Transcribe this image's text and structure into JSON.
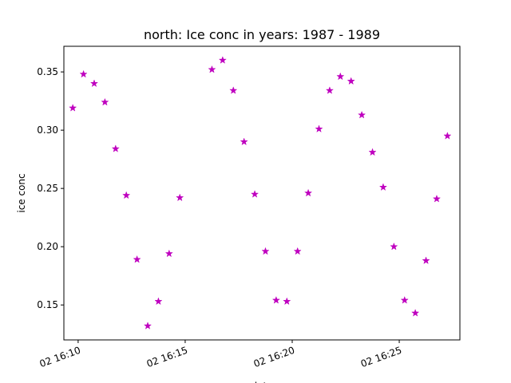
{
  "chart_data": {
    "type": "scatter",
    "title": "north: Ice conc in years: 1987 - 1989",
    "ylabel": "ice conc",
    "xlabel": "date",
    "marker": "star",
    "marker_color": "#bf00bf",
    "ylim": [
      0.12,
      0.372
    ],
    "xlim": [
      "02 16:09:20",
      "02 16:27:50"
    ],
    "y_ticks": [
      {
        "value": 0.15,
        "label": "0.15"
      },
      {
        "value": 0.2,
        "label": "0.20"
      },
      {
        "value": 0.25,
        "label": "0.25"
      },
      {
        "value": 0.3,
        "label": "0.30"
      },
      {
        "value": 0.35,
        "label": "0.35"
      }
    ],
    "x_ticks": [
      {
        "value": "02 16:10:00",
        "label": "02 16:10"
      },
      {
        "value": "02 16:15:00",
        "label": "02 16:15"
      },
      {
        "value": "02 16:20:00",
        "label": "02 16:20"
      },
      {
        "value": "02 16:25:00",
        "label": "02 16:25"
      }
    ],
    "points": [
      {
        "x": "02 16:09:45",
        "y": 0.319
      },
      {
        "x": "02 16:10:15",
        "y": 0.348
      },
      {
        "x": "02 16:10:45",
        "y": 0.34
      },
      {
        "x": "02 16:11:15",
        "y": 0.324
      },
      {
        "x": "02 16:11:45",
        "y": 0.284
      },
      {
        "x": "02 16:12:15",
        "y": 0.244
      },
      {
        "x": "02 16:12:45",
        "y": 0.189
      },
      {
        "x": "02 16:13:15",
        "y": 0.132
      },
      {
        "x": "02 16:13:45",
        "y": 0.153
      },
      {
        "x": "02 16:14:15",
        "y": 0.194
      },
      {
        "x": "02 16:14:45",
        "y": 0.242
      },
      {
        "x": "02 16:16:15",
        "y": 0.352
      },
      {
        "x": "02 16:16:45",
        "y": 0.36
      },
      {
        "x": "02 16:17:15",
        "y": 0.334
      },
      {
        "x": "02 16:17:45",
        "y": 0.29
      },
      {
        "x": "02 16:18:15",
        "y": 0.245
      },
      {
        "x": "02 16:18:45",
        "y": 0.196
      },
      {
        "x": "02 16:19:15",
        "y": 0.154
      },
      {
        "x": "02 16:19:45",
        "y": 0.153
      },
      {
        "x": "02 16:20:15",
        "y": 0.196
      },
      {
        "x": "02 16:20:45",
        "y": 0.246
      },
      {
        "x": "02 16:21:15",
        "y": 0.301
      },
      {
        "x": "02 16:21:45",
        "y": 0.334
      },
      {
        "x": "02 16:22:15",
        "y": 0.346
      },
      {
        "x": "02 16:22:45",
        "y": 0.342
      },
      {
        "x": "02 16:23:15",
        "y": 0.313
      },
      {
        "x": "02 16:23:45",
        "y": 0.281
      },
      {
        "x": "02 16:24:15",
        "y": 0.251
      },
      {
        "x": "02 16:24:45",
        "y": 0.2
      },
      {
        "x": "02 16:25:15",
        "y": 0.154
      },
      {
        "x": "02 16:25:45",
        "y": 0.143
      },
      {
        "x": "02 16:26:15",
        "y": 0.188
      },
      {
        "x": "02 16:26:45",
        "y": 0.241
      },
      {
        "x": "02 16:27:15",
        "y": 0.295
      }
    ]
  }
}
